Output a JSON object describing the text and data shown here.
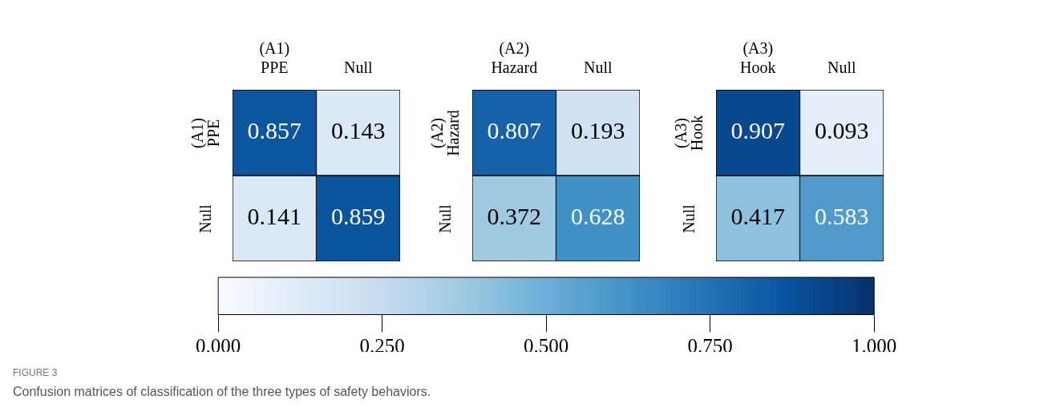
{
  "chart_data": [
    {
      "type": "heatmap",
      "categories": [
        "(A1) PPE",
        "Null"
      ],
      "y_categories": [
        "(A1) PPE",
        "Null"
      ],
      "cells": [
        [
          0.857,
          0.143
        ],
        [
          0.141,
          0.859
        ]
      ],
      "data_labels": true,
      "clim": [
        0,
        1
      ],
      "cticks": [
        {
          "value": 0,
          "label": "0.000"
        },
        {
          "value": 0.25,
          "label": "0.250"
        },
        {
          "value": 0.5,
          "label": "0.500"
        },
        {
          "value": 0.75,
          "label": "0.750"
        },
        {
          "value": 1,
          "label": "1.000"
        }
      ],
      "annotations": [
        "FIGURE 3",
        "Confusion matrices of classification of the three types of safety behaviors."
      ]
    },
    {
      "type": "heatmap",
      "categories": [
        "(A2) Hazard",
        "Null"
      ],
      "y_categories": [
        "(A2) Hazard",
        "Null"
      ],
      "cells": [
        [
          0.807,
          0.193
        ],
        [
          0.372,
          0.628
        ]
      ],
      "data_labels": true
    },
    {
      "type": "heatmap",
      "categories": [
        "(A3) Hook",
        "Null"
      ],
      "y_categories": [
        "(A3) Hook",
        "Null"
      ],
      "cells": [
        [
          0.907,
          0.093
        ],
        [
          0.417,
          0.583
        ]
      ],
      "data_labels": true
    }
  ]
}
